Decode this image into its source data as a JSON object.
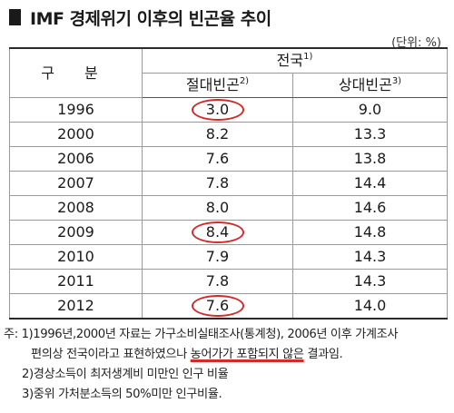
{
  "title": "IMF 경제위기 이후의 빈곤율 추이",
  "unit": "(단위: %)",
  "table": {
    "col_category": "구 분",
    "group_header": "전국",
    "group_header_sup": "1)",
    "col_absolute": "절대빈곤",
    "col_absolute_sup": "2)",
    "col_relative": "상대빈곤",
    "col_relative_sup": "3)",
    "rows": [
      {
        "year": "1996",
        "absolute": "3.0",
        "relative": "9.0",
        "circled": true
      },
      {
        "year": "2000",
        "absolute": "8.2",
        "relative": "13.3",
        "circled": false
      },
      {
        "year": "2006",
        "absolute": "7.6",
        "relative": "13.8",
        "circled": false
      },
      {
        "year": "2007",
        "absolute": "7.8",
        "relative": "14.4",
        "circled": false
      },
      {
        "year": "2008",
        "absolute": "8.0",
        "relative": "14.6",
        "circled": false
      },
      {
        "year": "2009",
        "absolute": "8.4",
        "relative": "14.8",
        "circled": true
      },
      {
        "year": "2010",
        "absolute": "7.9",
        "relative": "14.3",
        "circled": false
      },
      {
        "year": "2011",
        "absolute": "7.8",
        "relative": "14.3",
        "circled": false
      },
      {
        "year": "2012",
        "absolute": "7.6",
        "relative": "14.0",
        "circled": true
      }
    ]
  },
  "notes": {
    "note1_line1": "주: 1)1996년,2000년 자료는 가구소비실태조사(통계청), 2006년 이후 가계조사",
    "note1_line2_pre": "편의상 전국이라고 표현하였으나 ",
    "note1_line2_underlined": "농어가가 포함되지 않은",
    "note1_line2_post": " 결과임.",
    "note2": "2)경상소득이 최저생계비 미만인 인구 비율",
    "note3": "3)중위 가처분소득의 50%미만 인구비율."
  },
  "colors": {
    "circle": "#d42a2a",
    "underline": "#d42a2a"
  }
}
